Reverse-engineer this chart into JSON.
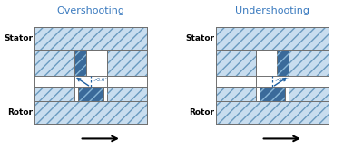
{
  "title_left": "Overshooting",
  "title_right": "Undershooting",
  "label_stator": "Stator",
  "label_rotor": "Rotor",
  "angle_label": ">3.6°",
  "title_color": "#3a7abf",
  "light_fill": "#c8ddef",
  "dark_fill": "#3a6a9a",
  "hatch_ec": "#6a9abf",
  "outline_color": "#707070",
  "arrow_color": "#2060a0",
  "fig_bg": "#ffffff"
}
